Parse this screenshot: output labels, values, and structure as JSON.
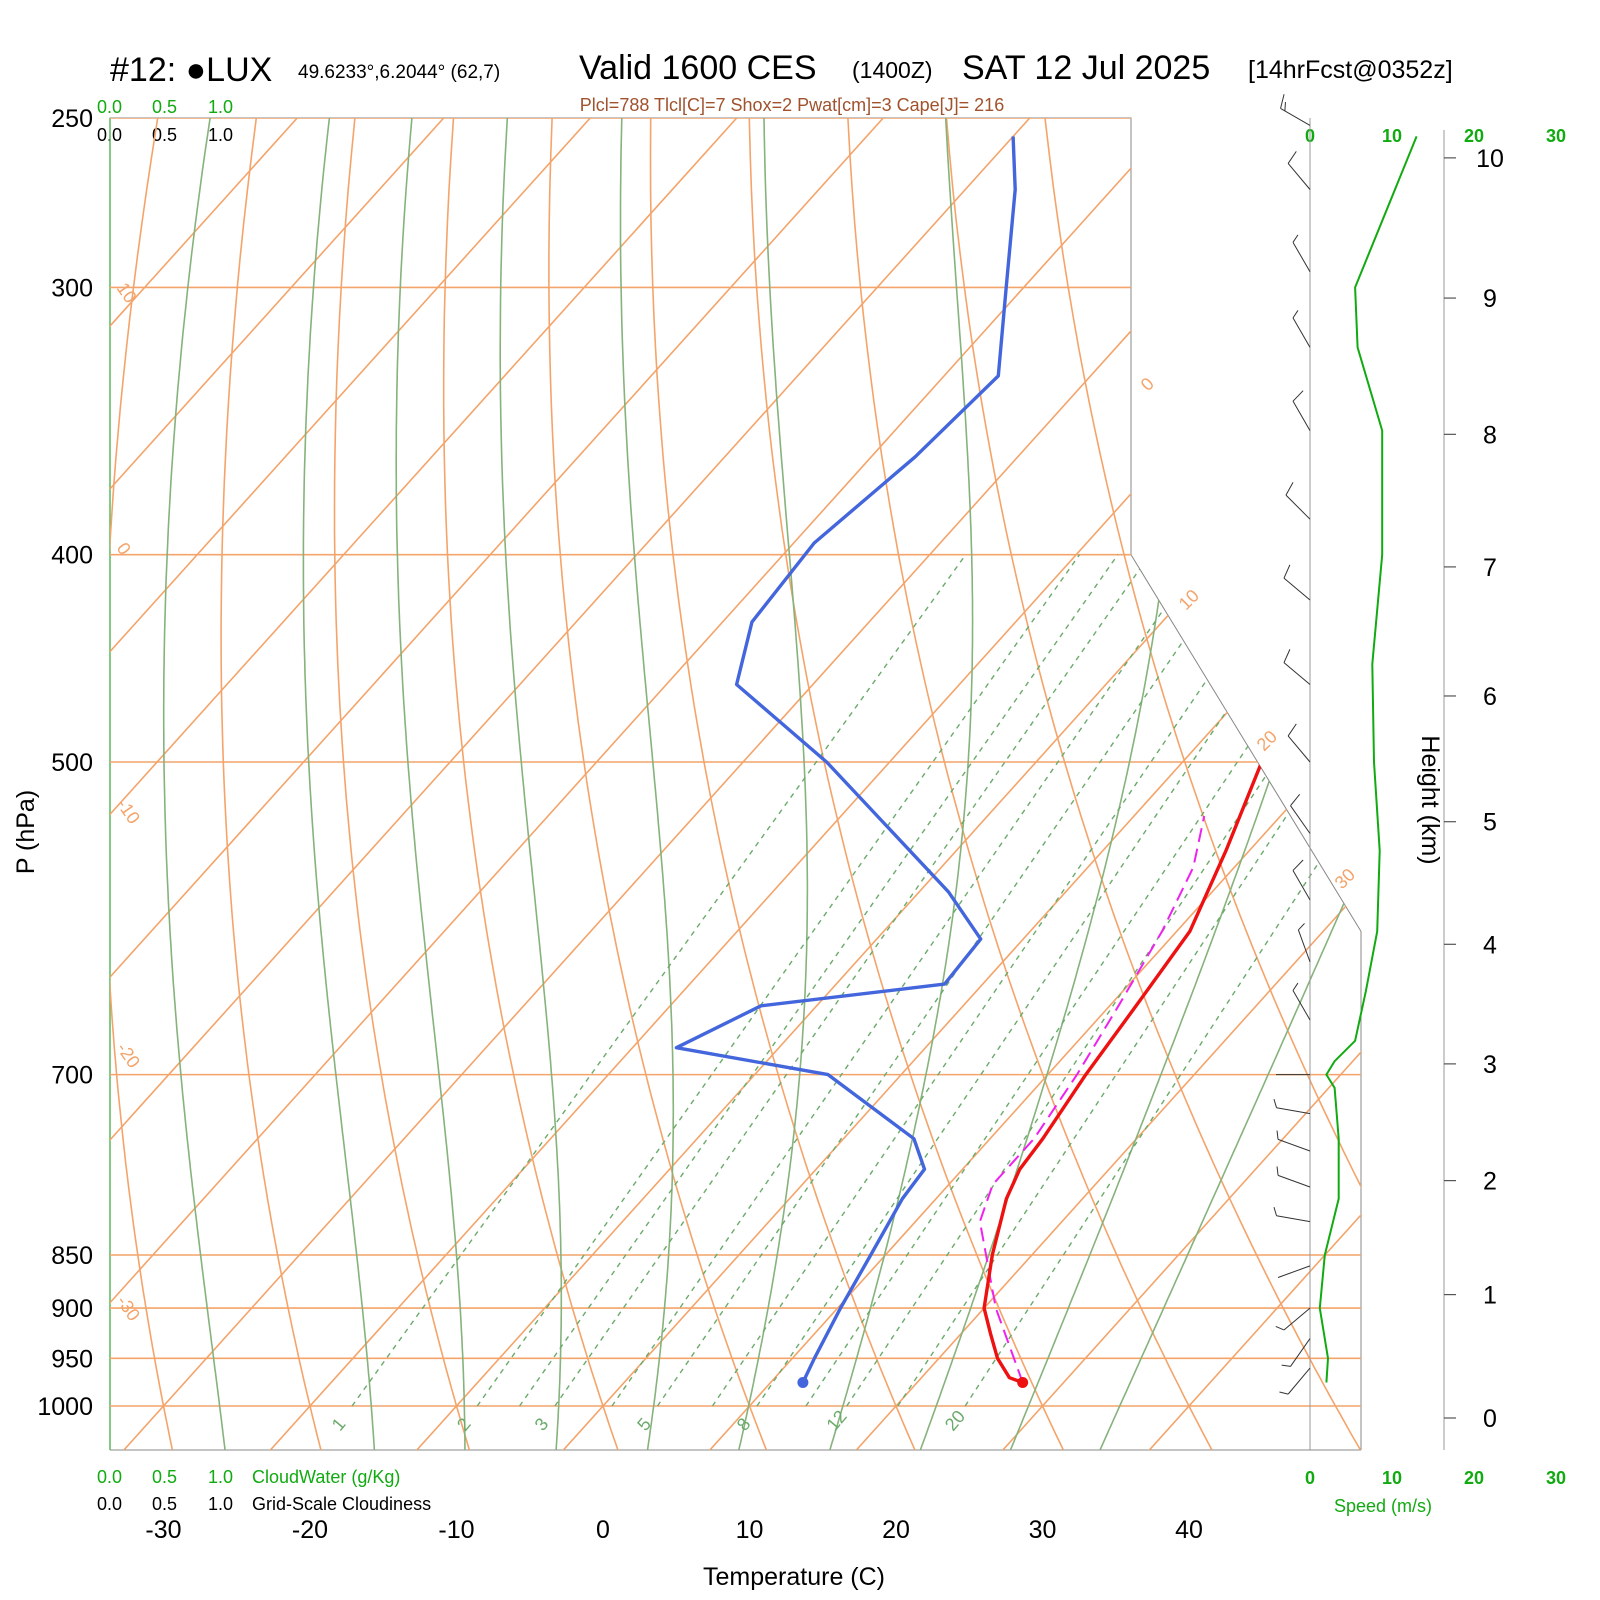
{
  "header": {
    "station": "#12: ●LUX",
    "coords": "49.6233°,6.2044° (62,7)",
    "valid": "Valid 1600 CES",
    "zulu": "(1400Z)",
    "date": "SAT 12 Jul 2025",
    "forecast": "[14hrFcst@0352z]",
    "indices": "Plcl=788 Tlcl[C]=7 Shox=2 Pwat[cm]=3 Cape[J]= 216"
  },
  "axes": {
    "x_label": "Temperature (C)",
    "y_label": "P (hPa)",
    "height_label": "Height (km)",
    "speed_label": "Speed (m/s)",
    "cloudwater_label": "CloudWater (g/Kg)",
    "cloudiness_label": "Grid-Scale Cloudiness",
    "scale_ticks": [
      "0.0",
      "0.5",
      "1.0"
    ],
    "speed_ticks": [
      "0",
      "10",
      "20",
      "30"
    ]
  },
  "colors": {
    "temperature": "#ee1111",
    "dewpoint": "#4466dd",
    "parcel": "#ee22ee",
    "isotherm": "#f4a46a",
    "dry_adiabat": "#f4a46a",
    "moist_adiabat": "#86b27c",
    "mixing_ratio": "#6aaa6a",
    "speed": "#11aa11",
    "barb": "#333333",
    "indices_text": "#a0522d"
  },
  "chart_data": {
    "type": "skew-t log-p sounding",
    "x_ticks": [
      -30,
      -20,
      -10,
      0,
      10,
      20,
      30,
      40
    ],
    "pressure_levels": [
      250,
      300,
      400,
      500,
      700,
      850,
      900,
      950,
      1000
    ],
    "height_km_ticks": [
      0,
      1,
      2,
      3,
      4,
      5,
      6,
      7,
      8,
      9,
      10
    ],
    "isotherm_labels": [
      -30,
      -20,
      -10,
      0,
      10,
      20,
      30
    ],
    "mixing_ratio_labels": [
      1,
      2,
      3,
      5,
      8,
      12,
      20
    ],
    "temperature_profile": [
      {
        "p": 975,
        "t": 27.2
      },
      {
        "p": 970,
        "t": 26.0
      },
      {
        "p": 950,
        "t": 24.0
      },
      {
        "p": 925,
        "t": 22.0
      },
      {
        "p": 900,
        "t": 20.0
      },
      {
        "p": 850,
        "t": 17.3
      },
      {
        "p": 800,
        "t": 14.8
      },
      {
        "p": 775,
        "t": 13.9
      },
      {
        "p": 750,
        "t": 13.6
      },
      {
        "p": 700,
        "t": 12.6
      },
      {
        "p": 650,
        "t": 11.8
      },
      {
        "p": 600,
        "t": 10.9
      },
      {
        "p": 550,
        "t": 8.4
      },
      {
        "p": 500,
        "t": 5.4
      },
      {
        "p": 450,
        "t": 1.3
      },
      {
        "p": 400,
        "t": -4.4
      },
      {
        "p": 380,
        "t": -7.4
      },
      {
        "p": 350,
        "t": -11.6
      },
      {
        "p": 300,
        "t": -20.0
      },
      {
        "p": 275,
        "t": -24.6
      },
      {
        "p": 255,
        "t": -28.8
      }
    ],
    "dewpoint_profile": [
      {
        "p": 975,
        "t": 12.2
      },
      {
        "p": 950,
        "t": 11.5
      },
      {
        "p": 900,
        "t": 10.2
      },
      {
        "p": 850,
        "t": 9.0
      },
      {
        "p": 800,
        "t": 7.7
      },
      {
        "p": 775,
        "t": 7.4
      },
      {
        "p": 750,
        "t": 4.8
      },
      {
        "p": 700,
        "t": -5.0
      },
      {
        "p": 680,
        "t": -17.0
      },
      {
        "p": 650,
        "t": -13.8
      },
      {
        "p": 635,
        "t": -2.6
      },
      {
        "p": 605,
        "t": -2.9
      },
      {
        "p": 575,
        "t": -8.0
      },
      {
        "p": 500,
        "t": -24.3
      },
      {
        "p": 460,
        "t": -35.2
      },
      {
        "p": 430,
        "t": -38.0
      },
      {
        "p": 395,
        "t": -38.6
      },
      {
        "p": 360,
        "t": -37.0
      },
      {
        "p": 330,
        "t": -36.3
      },
      {
        "p": 300,
        "t": -41.2
      },
      {
        "p": 270,
        "t": -46.6
      },
      {
        "p": 255,
        "t": -50.0
      }
    ],
    "parcel_profile": [
      {
        "p": 975,
        "t": 27.2
      },
      {
        "p": 900,
        "t": 20.8
      },
      {
        "p": 820,
        "t": 14.4
      },
      {
        "p": 788,
        "t": 13.0
      },
      {
        "p": 750,
        "t": 13.0
      },
      {
        "p": 700,
        "t": 12.0
      },
      {
        "p": 650,
        "t": 10.6
      },
      {
        "p": 600,
        "t": 9.0
      },
      {
        "p": 560,
        "t": 7.2
      },
      {
        "p": 530,
        "t": 4.8
      }
    ],
    "wind_speed_profile": [
      {
        "p": 975,
        "v": 2.0
      },
      {
        "p": 950,
        "v": 2.2
      },
      {
        "p": 900,
        "v": 1.2
      },
      {
        "p": 850,
        "v": 1.8
      },
      {
        "p": 800,
        "v": 3.5
      },
      {
        "p": 750,
        "v": 3.5
      },
      {
        "p": 710,
        "v": 3.0
      },
      {
        "p": 700,
        "v": 2.0
      },
      {
        "p": 690,
        "v": 3.0
      },
      {
        "p": 675,
        "v": 5.5
      },
      {
        "p": 640,
        "v": 6.8
      },
      {
        "p": 600,
        "v": 8.2
      },
      {
        "p": 550,
        "v": 8.5
      },
      {
        "p": 500,
        "v": 7.8
      },
      {
        "p": 450,
        "v": 7.6
      },
      {
        "p": 400,
        "v": 8.8
      },
      {
        "p": 350,
        "v": 8.8
      },
      {
        "p": 320,
        "v": 5.8
      },
      {
        "p": 300,
        "v": 5.5
      },
      {
        "p": 255,
        "v": 13.0
      }
    ],
    "wind_barbs": [
      {
        "p": 960,
        "dir": 220,
        "spd": 4
      },
      {
        "p": 930,
        "dir": 215,
        "spd": 4
      },
      {
        "p": 900,
        "dir": 230,
        "spd": 3
      },
      {
        "p": 860,
        "dir": 250,
        "spd": 2
      },
      {
        "p": 820,
        "dir": 280,
        "spd": 4
      },
      {
        "p": 790,
        "dir": 290,
        "spd": 4
      },
      {
        "p": 760,
        "dir": 290,
        "spd": 4
      },
      {
        "p": 730,
        "dir": 280,
        "spd": 4
      },
      {
        "p": 700,
        "dir": 270,
        "spd": 2
      },
      {
        "p": 660,
        "dir": 330,
        "spd": 5
      },
      {
        "p": 620,
        "dir": 340,
        "spd": 7
      },
      {
        "p": 580,
        "dir": 330,
        "spd": 8
      },
      {
        "p": 540,
        "dir": 325,
        "spd": 8
      },
      {
        "p": 500,
        "dir": 320,
        "spd": 8
      },
      {
        "p": 460,
        "dir": 310,
        "spd": 8
      },
      {
        "p": 420,
        "dir": 310,
        "spd": 9
      },
      {
        "p": 385,
        "dir": 315,
        "spd": 9
      },
      {
        "p": 350,
        "dir": 330,
        "spd": 8
      },
      {
        "p": 320,
        "dir": 330,
        "spd": 6
      },
      {
        "p": 295,
        "dir": 330,
        "spd": 6
      },
      {
        "p": 270,
        "dir": 320,
        "spd": 12
      },
      {
        "p": 252,
        "dir": 300,
        "spd": 13
      }
    ]
  }
}
